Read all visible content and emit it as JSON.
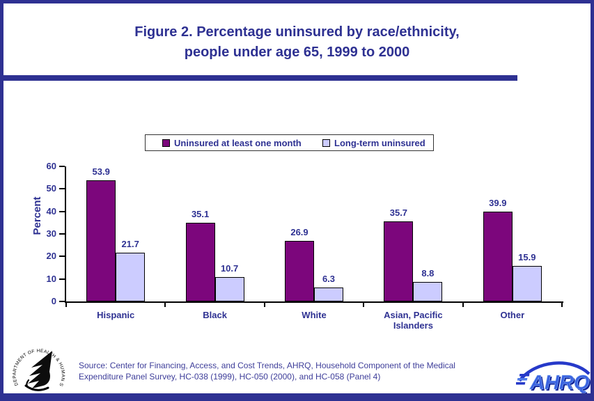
{
  "title": {
    "line1": "Figure 2. Percentage uninsured by race/ethnicity,",
    "line2": "people under age 65, 1999 to 2000"
  },
  "chart_data": {
    "type": "bar",
    "categories": [
      "Hispanic",
      "Black",
      "White",
      "Asian, Pacific Islanders",
      "Other"
    ],
    "series": [
      {
        "name": "Uninsured at least one month",
        "color": "#7C067C",
        "values": [
          53.9,
          35.1,
          26.9,
          35.7,
          39.9
        ]
      },
      {
        "name": "Long-term uninsured",
        "color": "#CCCCFF",
        "values": [
          21.7,
          10.7,
          6.3,
          8.8,
          15.9
        ]
      }
    ],
    "title": "Figure 2. Percentage uninsured by race/ethnicity, people under age 65, 1999 to 2000",
    "xlabel": "",
    "ylabel": "Percent",
    "ylim": [
      0,
      60
    ],
    "yticks": [
      0,
      10,
      20,
      30,
      40,
      50,
      60
    ],
    "grid": false,
    "legend_position": "top",
    "value_labels": true
  },
  "legend": {
    "items": [
      {
        "label": "Uninsured at least one month",
        "color": "#7C067C"
      },
      {
        "label": "Long-term uninsured",
        "color": "#CCCCFF"
      }
    ]
  },
  "source": {
    "line1": "Source: Center for Financing, Access, and Cost Trends, AHRQ, Household Component of the Medical",
    "line2": "Expenditure Panel Survey, HC-038 (1999), HC-050 (2000), and HC-058 (Panel 4)"
  },
  "logos": {
    "hhs_seal_text": "DEPARTMENT OF HEALTH & HUMAN SERVICES · USA",
    "ahrq_text": "AHRQ"
  },
  "colors": {
    "frame": "#2E3192",
    "text": "#2E3192",
    "bar_series1": "#7C067C",
    "bar_series2": "#CCCCFF",
    "axis": "#000000",
    "source_text": "#3D3D99"
  }
}
